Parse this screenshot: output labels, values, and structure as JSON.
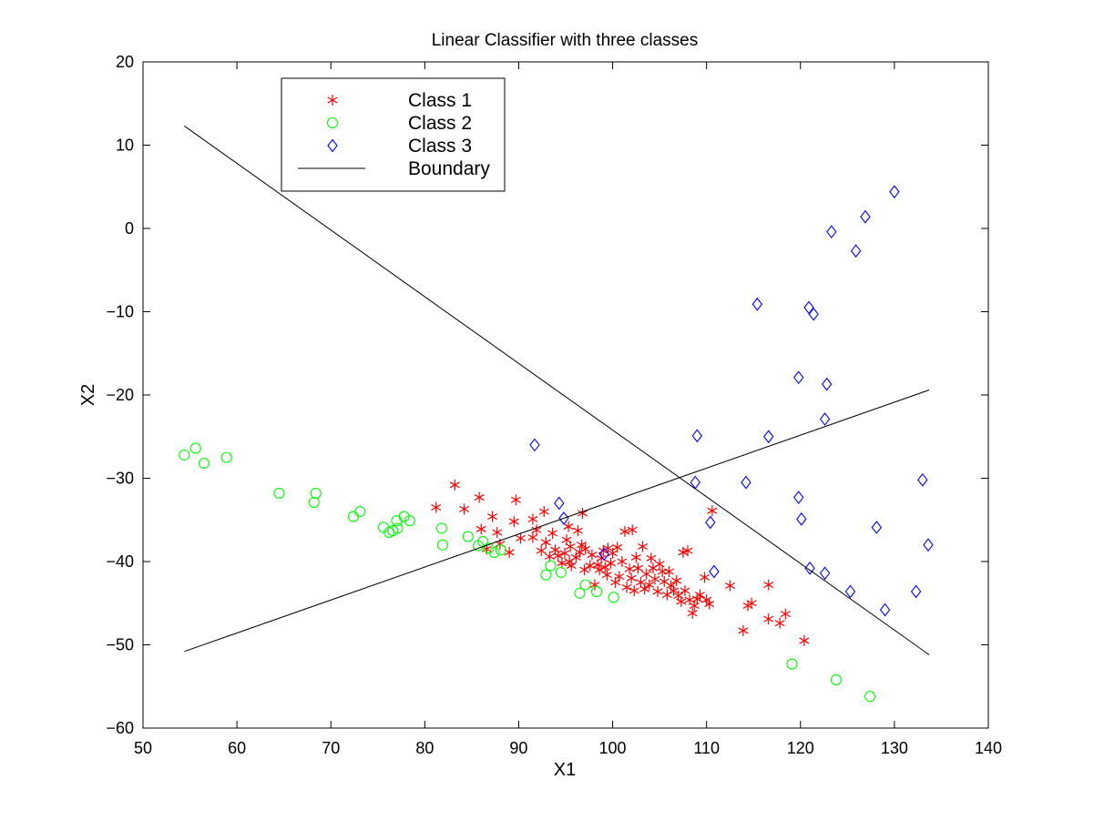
{
  "chart_data": {
    "type": "scatter",
    "title": "Linear Classifier with three classes",
    "xlabel": "X1",
    "ylabel": "X2",
    "xlim": [
      50,
      140
    ],
    "ylim": [
      -60,
      20
    ],
    "xticks": [
      50,
      60,
      70,
      80,
      90,
      100,
      110,
      120,
      130,
      140
    ],
    "yticks": [
      -60,
      -50,
      -40,
      -30,
      -20,
      -10,
      0,
      10,
      20
    ],
    "xtick_labels": [
      "50",
      "60",
      "70",
      "80",
      "90",
      "100",
      "110",
      "120",
      "130",
      "140"
    ],
    "ytick_labels": [
      "−60",
      "−50",
      "−40",
      "−30",
      "−20",
      "−10",
      "0",
      "10",
      "20"
    ],
    "grid": false,
    "legend_position": "top-left",
    "series": [
      {
        "name": "Class 1",
        "marker": "asterisk",
        "color": "#ff0000",
        "points": [
          [
            81.2,
            -33.5
          ],
          [
            83.2,
            -30.8
          ],
          [
            84.2,
            -33.7
          ],
          [
            85.8,
            -32.3
          ],
          [
            86.0,
            -36.1
          ],
          [
            86.6,
            -38.5
          ],
          [
            87.2,
            -34.6
          ],
          [
            87.7,
            -36.5
          ],
          [
            88.0,
            -37.9
          ],
          [
            89.0,
            -38.9
          ],
          [
            89.5,
            -35.2
          ],
          [
            89.7,
            -32.6
          ],
          [
            90.2,
            -37.2
          ],
          [
            91.5,
            -34.9
          ],
          [
            91.5,
            -37.1
          ],
          [
            91.9,
            -36.2
          ],
          [
            92.4,
            -38.7
          ],
          [
            92.7,
            -34.0
          ],
          [
            92.9,
            -37.7
          ],
          [
            93.3,
            -39.4
          ],
          [
            93.6,
            -36.6
          ],
          [
            93.9,
            -38.6
          ],
          [
            94.2,
            -39.3
          ],
          [
            94.6,
            -40.2
          ],
          [
            94.9,
            -39.0
          ],
          [
            95.1,
            -37.4
          ],
          [
            95.3,
            -35.8
          ],
          [
            95.4,
            -40.0
          ],
          [
            95.5,
            -38.2
          ],
          [
            95.6,
            -40.5
          ],
          [
            96.1,
            -39.5
          ],
          [
            96.3,
            -36.3
          ],
          [
            96.5,
            -38.9
          ],
          [
            96.7,
            -38.0
          ],
          [
            96.8,
            -34.2
          ],
          [
            97.0,
            -41.0
          ],
          [
            97.1,
            -38.5
          ],
          [
            97.6,
            -40.5
          ],
          [
            97.8,
            -39.2
          ],
          [
            98.1,
            -42.8
          ],
          [
            98.4,
            -40.4
          ],
          [
            98.6,
            -41.0
          ],
          [
            98.8,
            -39.6
          ],
          [
            99.0,
            -38.7
          ],
          [
            99.2,
            -40.7
          ],
          [
            99.4,
            -41.6
          ],
          [
            99.5,
            -38.4
          ],
          [
            99.8,
            -40.2
          ],
          [
            100.0,
            -39.0
          ],
          [
            100.3,
            -42.5
          ],
          [
            100.5,
            -38.3
          ],
          [
            100.7,
            -41.8
          ],
          [
            101.0,
            -40.0
          ],
          [
            101.3,
            -36.4
          ],
          [
            101.5,
            -43.1
          ],
          [
            101.8,
            -40.9
          ],
          [
            102.0,
            -42.0
          ],
          [
            102.1,
            -36.2
          ],
          [
            102.3,
            -43.5
          ],
          [
            102.5,
            -39.5
          ],
          [
            102.7,
            -40.8
          ],
          [
            103.0,
            -42.5
          ],
          [
            103.2,
            -38.2
          ],
          [
            103.4,
            -43.3
          ],
          [
            103.6,
            -41.5
          ],
          [
            103.9,
            -42.8
          ],
          [
            104.1,
            -39.6
          ],
          [
            104.3,
            -40.8
          ],
          [
            104.5,
            -42.1
          ],
          [
            104.8,
            -43.6
          ],
          [
            105.0,
            -40.3
          ],
          [
            105.3,
            -41.2
          ],
          [
            105.5,
            -42.4
          ],
          [
            105.8,
            -44.0
          ],
          [
            106.0,
            -41.2
          ],
          [
            106.2,
            -42.9
          ],
          [
            106.5,
            -43.5
          ],
          [
            106.8,
            -42.3
          ],
          [
            107.0,
            -44.1
          ],
          [
            107.3,
            -44.8
          ],
          [
            107.5,
            -38.9
          ],
          [
            107.7,
            -43.5
          ],
          [
            108.0,
            -38.7
          ],
          [
            108.2,
            -44.6
          ],
          [
            108.5,
            -46.2
          ],
          [
            108.7,
            -45.3
          ],
          [
            109.0,
            -44.5
          ],
          [
            109.3,
            -44.0
          ],
          [
            109.8,
            -41.9
          ],
          [
            110.0,
            -44.6
          ],
          [
            110.3,
            -45.1
          ],
          [
            110.6,
            -33.9
          ],
          [
            112.5,
            -42.9
          ],
          [
            113.9,
            -48.3
          ],
          [
            114.4,
            -45.3
          ],
          [
            114.8,
            -45.0
          ],
          [
            116.6,
            -42.8
          ],
          [
            116.6,
            -46.9
          ],
          [
            117.8,
            -47.4
          ],
          [
            118.4,
            -46.3
          ],
          [
            120.4,
            -49.5
          ]
        ]
      },
      {
        "name": "Class 2",
        "marker": "circle",
        "color": "#00ff00",
        "points": [
          [
            54.4,
            -27.2
          ],
          [
            55.6,
            -26.4
          ],
          [
            56.5,
            -28.2
          ],
          [
            58.9,
            -27.5
          ],
          [
            64.5,
            -31.8
          ],
          [
            68.2,
            -32.9
          ],
          [
            68.4,
            -31.8
          ],
          [
            72.4,
            -34.6
          ],
          [
            73.1,
            -34.0
          ],
          [
            75.6,
            -35.9
          ],
          [
            76.2,
            -36.5
          ],
          [
            76.6,
            -36.3
          ],
          [
            77.0,
            -35.1
          ],
          [
            77.1,
            -36.0
          ],
          [
            77.8,
            -34.6
          ],
          [
            78.4,
            -35.1
          ],
          [
            81.8,
            -36.0
          ],
          [
            81.9,
            -38.0
          ],
          [
            84.6,
            -37.0
          ],
          [
            85.7,
            -38.1
          ],
          [
            86.2,
            -37.6
          ],
          [
            86.8,
            -38.4
          ],
          [
            87.4,
            -38.9
          ],
          [
            88.1,
            -38.6
          ],
          [
            92.9,
            -41.6
          ],
          [
            93.4,
            -40.5
          ],
          [
            94.5,
            -41.3
          ],
          [
            96.5,
            -43.8
          ],
          [
            97.1,
            -42.8
          ],
          [
            98.3,
            -43.6
          ],
          [
            100.1,
            -44.3
          ],
          [
            119.1,
            -52.3
          ],
          [
            123.8,
            -54.2
          ],
          [
            127.4,
            -56.2
          ]
        ]
      },
      {
        "name": "Class 3",
        "marker": "diamond",
        "color": "#0000ff",
        "points": [
          [
            91.7,
            -26.0
          ],
          [
            94.3,
            -33.0
          ],
          [
            94.8,
            -34.8
          ],
          [
            99.1,
            -39.1
          ],
          [
            108.8,
            -30.5
          ],
          [
            109.0,
            -24.9
          ],
          [
            110.4,
            -35.3
          ],
          [
            110.8,
            -41.2
          ],
          [
            114.2,
            -30.5
          ],
          [
            115.4,
            -9.1
          ],
          [
            116.6,
            -25.0
          ],
          [
            119.8,
            -17.9
          ],
          [
            119.8,
            -32.3
          ],
          [
            120.1,
            -34.9
          ],
          [
            120.9,
            -9.5
          ],
          [
            121.0,
            -40.8
          ],
          [
            121.4,
            -10.3
          ],
          [
            122.6,
            -22.9
          ],
          [
            122.6,
            -41.4
          ],
          [
            122.8,
            -18.7
          ],
          [
            123.3,
            -0.4
          ],
          [
            125.3,
            -43.6
          ],
          [
            125.9,
            -2.7
          ],
          [
            126.9,
            1.4
          ],
          [
            128.1,
            -35.9
          ],
          [
            129.0,
            -45.8
          ],
          [
            130.0,
            4.4
          ],
          [
            132.3,
            -43.6
          ],
          [
            133.0,
            -30.2
          ],
          [
            133.6,
            -38.0
          ]
        ]
      },
      {
        "name": "Boundary",
        "marker": "line",
        "color": "#000000",
        "segments": [
          [
            [
              54.4,
              12.3
            ],
            [
              133.7,
              -51.2
            ]
          ],
          [
            [
              54.4,
              -50.8
            ],
            [
              133.7,
              -19.4
            ]
          ]
        ]
      }
    ]
  }
}
